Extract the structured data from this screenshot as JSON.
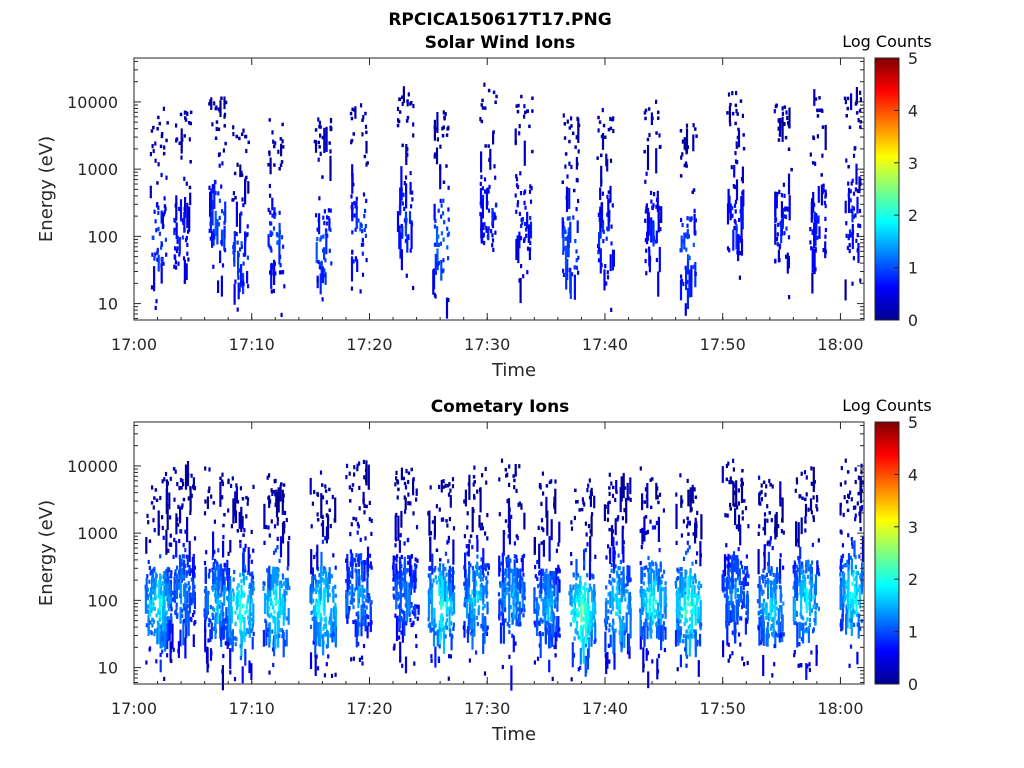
{
  "figure_title": "RPCICA150617T17.PNG",
  "chart_data": [
    {
      "type": "heatmap",
      "title": "Solar Wind Ions",
      "xlabel": "Time",
      "ylabel": "Energy (eV)",
      "x_ticks": [
        "17:00",
        "17:10",
        "17:20",
        "17:30",
        "17:40",
        "17:50",
        "18:00"
      ],
      "x_range": [
        "17:00",
        "18:02"
      ],
      "y_scale": "log",
      "y_ticks": [
        "10",
        "100",
        "1000",
        "10000"
      ],
      "y_range": [
        5.7,
        45000
      ],
      "colorbar": {
        "label": "Log Counts",
        "range": [
          0,
          5
        ],
        "ticks": [
          "0",
          "1",
          "2",
          "3",
          "4",
          "5"
        ],
        "colormap": "jet"
      },
      "data_extent": {
        "time_start": "17:01",
        "time_end": "18:02"
      },
      "bursts": [
        {
          "t": "17:02",
          "e_center": 100,
          "intensity": 0.8
        },
        {
          "t": "17:04",
          "e_center": 120,
          "intensity": 0.6
        },
        {
          "t": "17:07",
          "e_center": 200,
          "intensity": 0.9
        },
        {
          "t": "17:09",
          "e_center": 60,
          "intensity": 0.8
        },
        {
          "t": "17:12",
          "e_center": 100,
          "intensity": 0.8
        },
        {
          "t": "17:16",
          "e_center": 80,
          "intensity": 0.9
        },
        {
          "t": "17:19",
          "e_center": 150,
          "intensity": 0.8
        },
        {
          "t": "17:23",
          "e_center": 200,
          "intensity": 0.6
        },
        {
          "t": "17:26",
          "e_center": 100,
          "intensity": 1.0
        },
        {
          "t": "17:30",
          "e_center": 250,
          "intensity": 0.6
        },
        {
          "t": "17:33",
          "e_center": 200,
          "intensity": 0.6
        },
        {
          "t": "17:37",
          "e_center": 80,
          "intensity": 1.0
        },
        {
          "t": "17:40",
          "e_center": 100,
          "intensity": 0.7
        },
        {
          "t": "17:44",
          "e_center": 150,
          "intensity": 0.6
        },
        {
          "t": "17:47",
          "e_center": 70,
          "intensity": 0.9
        },
        {
          "t": "17:51",
          "e_center": 200,
          "intensity": 0.6
        },
        {
          "t": "17:55",
          "e_center": 150,
          "intensity": 0.6
        },
        {
          "t": "17:58",
          "e_center": 200,
          "intensity": 0.6
        },
        {
          "t": "18:01",
          "e_center": 200,
          "intensity": 0.6
        }
      ]
    },
    {
      "type": "heatmap",
      "title": "Cometary Ions",
      "xlabel": "Time",
      "ylabel": "Energy (eV)",
      "x_ticks": [
        "17:00",
        "17:10",
        "17:20",
        "17:30",
        "17:40",
        "17:50",
        "18:00"
      ],
      "x_range": [
        "17:00",
        "18:02"
      ],
      "y_scale": "log",
      "y_ticks": [
        "10",
        "100",
        "1000",
        "10000"
      ],
      "y_range": [
        5.7,
        45000
      ],
      "colorbar": {
        "label": "Log Counts",
        "range": [
          0,
          5
        ],
        "ticks": [
          "0",
          "1",
          "2",
          "3",
          "4",
          "5"
        ],
        "colormap": "jet"
      },
      "data_extent": {
        "time_start": "17:01",
        "time_end": "18:02"
      },
      "bursts": [
        {
          "t": "17:02",
          "e_center": 100,
          "intensity": 1.8
        },
        {
          "t": "17:04",
          "e_center": 150,
          "intensity": 1.2
        },
        {
          "t": "17:07",
          "e_center": 120,
          "intensity": 1.4
        },
        {
          "t": "17:09",
          "e_center": 90,
          "intensity": 2.0
        },
        {
          "t": "17:12",
          "e_center": 100,
          "intensity": 1.9
        },
        {
          "t": "17:16",
          "e_center": 100,
          "intensity": 1.9
        },
        {
          "t": "17:19",
          "e_center": 150,
          "intensity": 1.3
        },
        {
          "t": "17:23",
          "e_center": 150,
          "intensity": 1.1
        },
        {
          "t": "17:26",
          "e_center": 100,
          "intensity": 2.0
        },
        {
          "t": "17:29",
          "e_center": 120,
          "intensity": 1.6
        },
        {
          "t": "17:32",
          "e_center": 150,
          "intensity": 1.4
        },
        {
          "t": "17:35",
          "e_center": 100,
          "intensity": 1.4
        },
        {
          "t": "17:38",
          "e_center": 80,
          "intensity": 2.2
        },
        {
          "t": "17:41",
          "e_center": 100,
          "intensity": 1.7
        },
        {
          "t": "17:44",
          "e_center": 120,
          "intensity": 1.8
        },
        {
          "t": "17:47",
          "e_center": 100,
          "intensity": 2.1
        },
        {
          "t": "17:51",
          "e_center": 150,
          "intensity": 1.2
        },
        {
          "t": "17:54",
          "e_center": 100,
          "intensity": 1.6
        },
        {
          "t": "17:57",
          "e_center": 120,
          "intensity": 1.8
        },
        {
          "t": "18:01",
          "e_center": 150,
          "intensity": 1.8
        }
      ]
    }
  ]
}
